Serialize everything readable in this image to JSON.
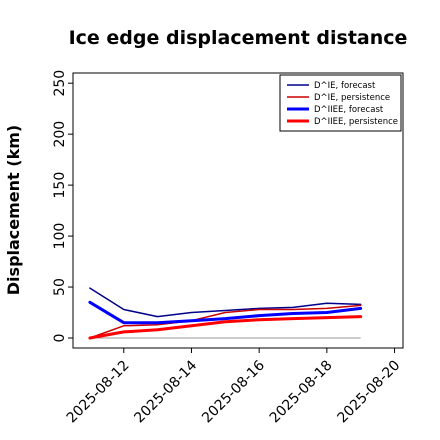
{
  "chart_data": {
    "type": "line",
    "title": "Ice edge displacement distance",
    "ylabel": "Displacement (km)",
    "xlabel": "",
    "ylim": [
      0,
      260
    ],
    "yticks": [
      0,
      50,
      100,
      150,
      200,
      250
    ],
    "xlim": [
      "2025-08-10T12:00",
      "2025-08-20T06:00"
    ],
    "xticks": [
      "2025-08-12",
      "2025-08-14",
      "2025-08-16",
      "2025-08-18",
      "2025-08-20"
    ],
    "highlight_tick": "2025-08-12",
    "highlight_color": "#228b22",
    "grid": false,
    "legend_position": "top-right",
    "x": [
      "2025-08-11",
      "2025-08-12",
      "2025-08-13",
      "2025-08-14",
      "2025-08-15",
      "2025-08-16",
      "2025-08-17",
      "2025-08-18",
      "2025-08-19"
    ],
    "series": [
      {
        "name": "D^IE, forecast",
        "color": "#00008b",
        "width": 1.5,
        "values": [
          49,
          28,
          21,
          25,
          27,
          29,
          30,
          34,
          33
        ]
      },
      {
        "name": "D^IE, persistence",
        "color": "#cc0000",
        "width": 1.5,
        "values": [
          0,
          12,
          13,
          17,
          25,
          28,
          28,
          29,
          32
        ]
      },
      {
        "name": "D^IIEE, forecast",
        "color": "#0000ff",
        "width": 3,
        "values": [
          35,
          15,
          15,
          17,
          19,
          22,
          24,
          25,
          29
        ]
      },
      {
        "name": "D^IIEE, persistence",
        "color": "#ff0000",
        "width": 3,
        "values": [
          0,
          6,
          8,
          12,
          16,
          18,
          19,
          20,
          21
        ]
      }
    ],
    "reference_line": {
      "y": 0,
      "color": "#999999"
    }
  }
}
